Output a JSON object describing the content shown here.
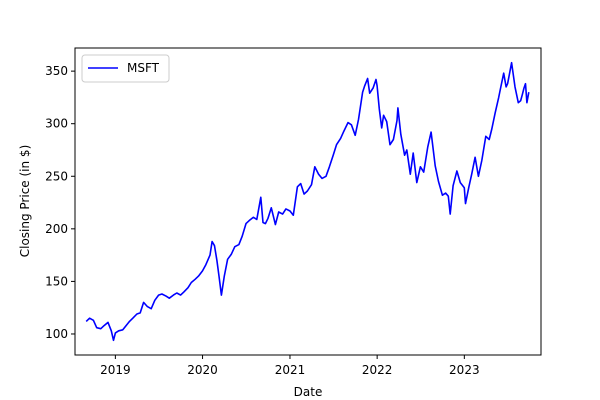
{
  "chart_data": {
    "type": "line",
    "title": "",
    "xlabel": "Date",
    "ylabel": "Closing Price (in $)",
    "x_ticks": [
      "2019",
      "2020",
      "2021",
      "2022",
      "2023"
    ],
    "y_ticks": [
      100,
      150,
      200,
      250,
      300,
      350
    ],
    "xlim": [
      "2018-07-16",
      "2023-11-18"
    ],
    "ylim": [
      80,
      372
    ],
    "grid": false,
    "legend": {
      "position": "top-left",
      "entries": [
        "MSFT"
      ]
    },
    "series": [
      {
        "name": "MSFT",
        "color": "#0000ff",
        "points": [
          [
            "2018-09-01",
            112
          ],
          [
            "2018-09-15",
            115
          ],
          [
            "2018-10-01",
            113
          ],
          [
            "2018-10-15",
            106
          ],
          [
            "2018-11-01",
            105
          ],
          [
            "2018-11-15",
            108
          ],
          [
            "2018-12-01",
            111
          ],
          [
            "2018-12-15",
            103
          ],
          [
            "2018-12-24",
            94
          ],
          [
            "2019-01-01",
            101
          ],
          [
            "2019-01-15",
            103
          ],
          [
            "2019-02-01",
            104
          ],
          [
            "2019-02-15",
            108
          ],
          [
            "2019-03-01",
            112
          ],
          [
            "2019-03-15",
            115
          ],
          [
            "2019-04-01",
            119
          ],
          [
            "2019-04-15",
            120
          ],
          [
            "2019-04-29",
            130
          ],
          [
            "2019-05-15",
            126
          ],
          [
            "2019-05-31",
            124
          ],
          [
            "2019-06-15",
            132
          ],
          [
            "2019-07-01",
            137
          ],
          [
            "2019-07-15",
            138
          ],
          [
            "2019-08-01",
            136
          ],
          [
            "2019-08-15",
            134
          ],
          [
            "2019-09-01",
            137
          ],
          [
            "2019-09-15",
            139
          ],
          [
            "2019-10-01",
            137
          ],
          [
            "2019-10-15",
            140
          ],
          [
            "2019-11-01",
            144
          ],
          [
            "2019-11-15",
            149
          ],
          [
            "2019-12-01",
            152
          ],
          [
            "2019-12-15",
            155
          ],
          [
            "2020-01-01",
            160
          ],
          [
            "2020-01-15",
            166
          ],
          [
            "2020-02-01",
            175
          ],
          [
            "2020-02-10",
            188
          ],
          [
            "2020-02-20",
            184
          ],
          [
            "2020-03-01",
            170
          ],
          [
            "2020-03-10",
            155
          ],
          [
            "2020-03-20",
            137
          ],
          [
            "2020-04-01",
            155
          ],
          [
            "2020-04-15",
            171
          ],
          [
            "2020-05-01",
            176
          ],
          [
            "2020-05-15",
            183
          ],
          [
            "2020-06-01",
            185
          ],
          [
            "2020-06-15",
            193
          ],
          [
            "2020-07-01",
            205
          ],
          [
            "2020-07-15",
            208
          ],
          [
            "2020-08-01",
            211
          ],
          [
            "2020-08-15",
            209
          ],
          [
            "2020-09-01",
            230
          ],
          [
            "2020-09-10",
            206
          ],
          [
            "2020-09-20",
            205
          ],
          [
            "2020-10-01",
            210
          ],
          [
            "2020-10-15",
            220
          ],
          [
            "2020-11-01",
            204
          ],
          [
            "2020-11-15",
            216
          ],
          [
            "2020-12-01",
            214
          ],
          [
            "2020-12-15",
            219
          ],
          [
            "2021-01-01",
            217
          ],
          [
            "2021-01-15",
            213
          ],
          [
            "2021-02-01",
            240
          ],
          [
            "2021-02-15",
            243
          ],
          [
            "2021-03-01",
            233
          ],
          [
            "2021-03-15",
            236
          ],
          [
            "2021-04-01",
            242
          ],
          [
            "2021-04-15",
            259
          ],
          [
            "2021-05-01",
            252
          ],
          [
            "2021-05-15",
            248
          ],
          [
            "2021-06-01",
            250
          ],
          [
            "2021-06-15",
            259
          ],
          [
            "2021-07-01",
            270
          ],
          [
            "2021-07-15",
            280
          ],
          [
            "2021-08-01",
            286
          ],
          [
            "2021-08-15",
            293
          ],
          [
            "2021-09-01",
            301
          ],
          [
            "2021-09-15",
            299
          ],
          [
            "2021-10-01",
            289
          ],
          [
            "2021-10-15",
            304
          ],
          [
            "2021-11-01",
            330
          ],
          [
            "2021-11-10",
            336
          ],
          [
            "2021-11-22",
            343
          ],
          [
            "2021-12-01",
            329
          ],
          [
            "2021-12-15",
            334
          ],
          [
            "2021-12-27",
            342
          ],
          [
            "2022-01-01",
            336
          ],
          [
            "2022-01-10",
            314
          ],
          [
            "2022-01-20",
            296
          ],
          [
            "2022-01-28",
            308
          ],
          [
            "2022-02-10",
            302
          ],
          [
            "2022-02-24",
            280
          ],
          [
            "2022-03-10",
            285
          ],
          [
            "2022-03-25",
            303
          ],
          [
            "2022-03-29",
            315
          ],
          [
            "2022-04-10",
            290
          ],
          [
            "2022-04-26",
            270
          ],
          [
            "2022-05-05",
            275
          ],
          [
            "2022-05-20",
            252
          ],
          [
            "2022-06-01",
            272
          ],
          [
            "2022-06-16",
            244
          ],
          [
            "2022-07-01",
            259
          ],
          [
            "2022-07-15",
            254
          ],
          [
            "2022-08-01",
            278
          ],
          [
            "2022-08-15",
            292
          ],
          [
            "2022-09-01",
            260
          ],
          [
            "2022-09-15",
            245
          ],
          [
            "2022-10-01",
            232
          ],
          [
            "2022-10-15",
            234
          ],
          [
            "2022-10-26",
            231
          ],
          [
            "2022-11-03",
            214
          ],
          [
            "2022-11-15",
            241
          ],
          [
            "2022-12-01",
            255
          ],
          [
            "2022-12-15",
            244
          ],
          [
            "2023-01-01",
            239
          ],
          [
            "2023-01-06",
            224
          ],
          [
            "2023-01-20",
            240
          ],
          [
            "2023-02-01",
            252
          ],
          [
            "2023-02-15",
            268
          ],
          [
            "2023-03-01",
            250
          ],
          [
            "2023-03-15",
            265
          ],
          [
            "2023-04-01",
            288
          ],
          [
            "2023-04-15",
            285
          ],
          [
            "2023-04-26",
            295
          ],
          [
            "2023-05-10",
            310
          ],
          [
            "2023-05-25",
            325
          ],
          [
            "2023-06-01",
            333
          ],
          [
            "2023-06-15",
            348
          ],
          [
            "2023-06-25",
            335
          ],
          [
            "2023-07-01",
            338
          ],
          [
            "2023-07-18",
            358
          ],
          [
            "2023-08-01",
            335
          ],
          [
            "2023-08-15",
            320
          ],
          [
            "2023-08-25",
            322
          ],
          [
            "2023-09-01",
            328
          ],
          [
            "2023-09-08",
            334
          ],
          [
            "2023-09-14",
            338
          ],
          [
            "2023-09-20",
            320
          ],
          [
            "2023-09-28",
            330
          ]
        ]
      }
    ]
  }
}
